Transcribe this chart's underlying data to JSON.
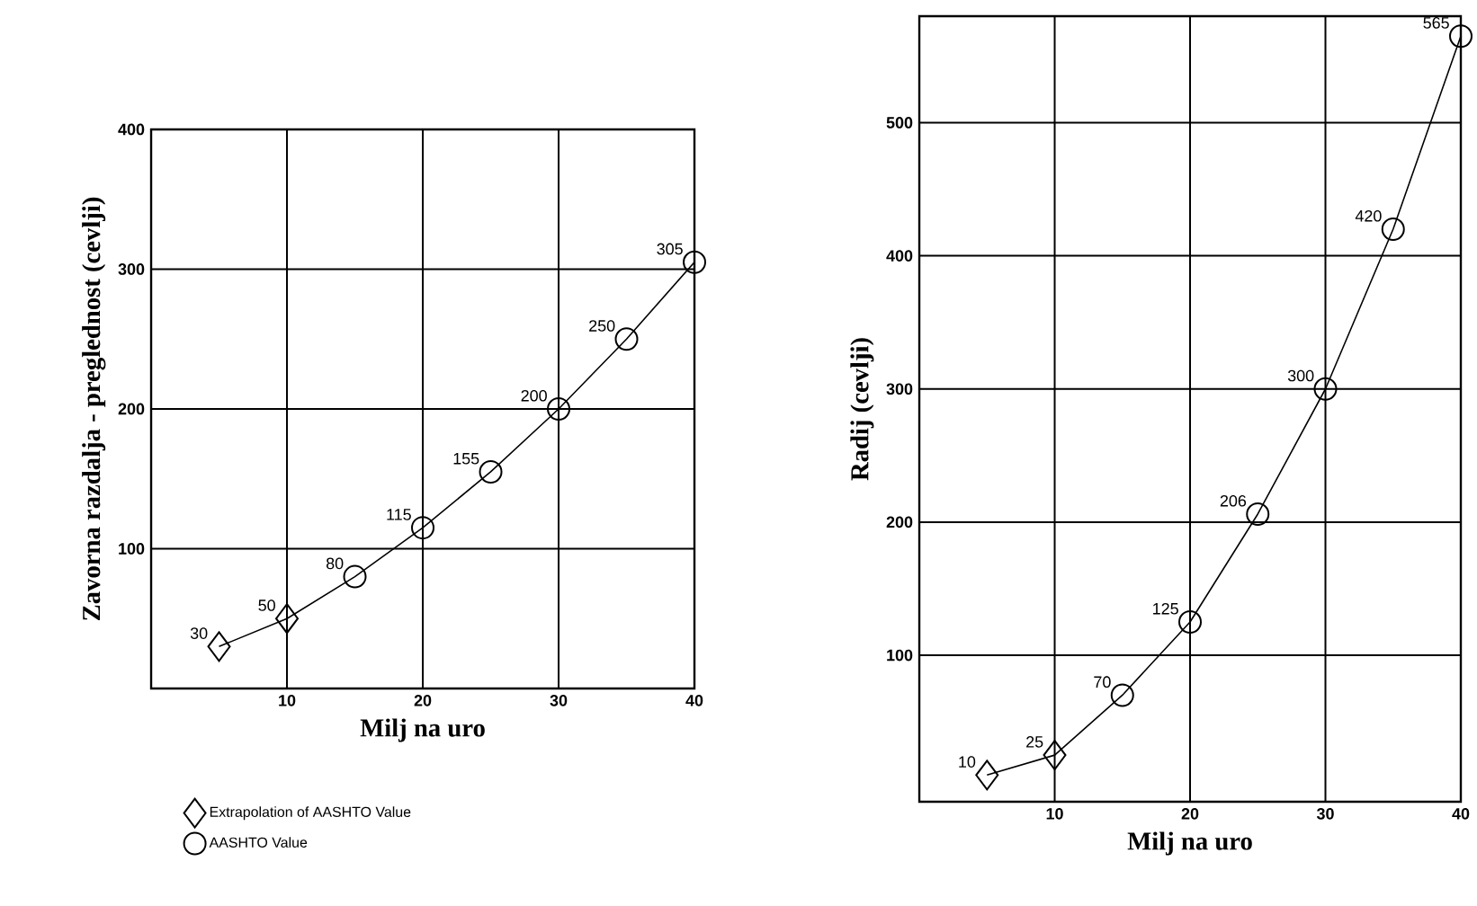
{
  "chart_data": [
    {
      "type": "line",
      "xlabel": "Milj na uro",
      "ylabel": "Zavorna razdalja - preglednost (cevlji)",
      "xlim": [
        0,
        40
      ],
      "ylim": [
        0,
        400
      ],
      "xticks": [
        10,
        20,
        30,
        40
      ],
      "yticks": [
        100,
        200,
        300,
        400
      ],
      "grid": true,
      "legend": "bottom left",
      "series": [
        {
          "color": "#000000",
          "marker": "none",
          "x": [
            5,
            10,
            15,
            20,
            25,
            30,
            35,
            40
          ],
          "values": [
            30,
            50,
            80,
            115,
            155,
            200,
            250,
            305
          ]
        },
        {
          "name": "Extrapolation of AASHTO Value",
          "type": "scatter",
          "color": "#000000",
          "marker": "diamond",
          "x": [
            5,
            10
          ],
          "values": [
            30,
            50
          ],
          "value_labels": [
            "30",
            "50"
          ]
        },
        {
          "name": "AASHTO Value",
          "type": "scatter",
          "color": "#000000",
          "marker": "circle",
          "x": [
            15,
            20,
            25,
            30,
            35,
            40
          ],
          "values": [
            80,
            115,
            155,
            200,
            250,
            305
          ],
          "value_labels": [
            "80",
            "115",
            "155",
            "200",
            "250",
            "305"
          ]
        }
      ]
    },
    {
      "type": "line",
      "xlabel": "Milj na uro",
      "ylabel": "Radij (cevlji)",
      "xlim": [
        0,
        40
      ],
      "ylim": [
        -10,
        580
      ],
      "xticks": [
        10,
        20,
        30,
        40
      ],
      "yticks": [
        100,
        200,
        300,
        400,
        500
      ],
      "grid": true,
      "series": [
        {
          "color": "#000000",
          "marker": "none",
          "x": [
            5,
            10,
            15,
            20,
            25,
            30,
            35,
            40
          ],
          "values": [
            10,
            25,
            70,
            125,
            206,
            300,
            420,
            565
          ]
        },
        {
          "type": "scatter",
          "color": "#000000",
          "marker": "diamond",
          "x": [
            5,
            10
          ],
          "values": [
            10,
            25
          ],
          "value_labels": [
            "10",
            "25"
          ]
        },
        {
          "type": "scatter",
          "color": "#000000",
          "marker": "circle",
          "x": [
            15,
            20,
            25,
            30,
            35,
            40
          ],
          "values": [
            70,
            125,
            206,
            300,
            420,
            565
          ],
          "value_labels": [
            "70",
            "125",
            "206",
            "300",
            "420",
            "565"
          ]
        }
      ]
    }
  ]
}
